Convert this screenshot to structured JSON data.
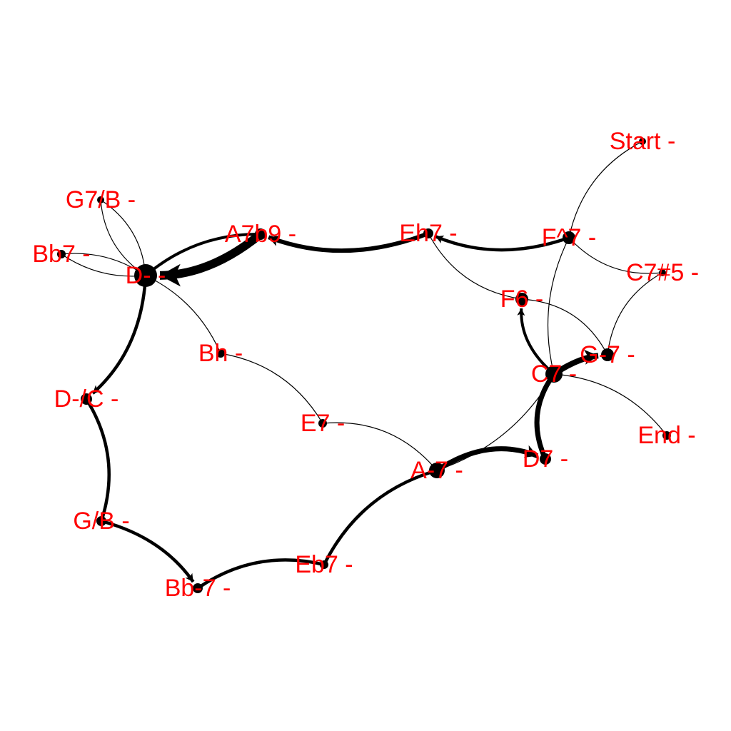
{
  "graph": {
    "nodes": [
      {
        "id": "start",
        "label": "Start -"
      },
      {
        "id": "f_maj7",
        "label": "F^7 -"
      },
      {
        "id": "eh7",
        "label": "Eh7 -"
      },
      {
        "id": "a7b9",
        "label": "A7b9 -"
      },
      {
        "id": "d_min",
        "label": "D- -"
      },
      {
        "id": "g7b",
        "label": "G7/B -"
      },
      {
        "id": "bb7",
        "label": "Bb7 -"
      },
      {
        "id": "bh",
        "label": "Bh -"
      },
      {
        "id": "e7",
        "label": "E7 -"
      },
      {
        "id": "a_min7",
        "label": "A-7 -"
      },
      {
        "id": "d7",
        "label": "D7 -"
      },
      {
        "id": "c7",
        "label": "C7 -"
      },
      {
        "id": "g_min7",
        "label": "G-7 -"
      },
      {
        "id": "f6",
        "label": "F6 -"
      },
      {
        "id": "c7s5",
        "label": "C7#5 -"
      },
      {
        "id": "end",
        "label": "End -"
      },
      {
        "id": "d_min_c",
        "label": "D-/C -"
      },
      {
        "id": "g_b",
        "label": "G/B -"
      },
      {
        "id": "bb_min7",
        "label": "Bb-7 -"
      },
      {
        "id": "eb7",
        "label": "Eb7 -"
      }
    ]
  }
}
